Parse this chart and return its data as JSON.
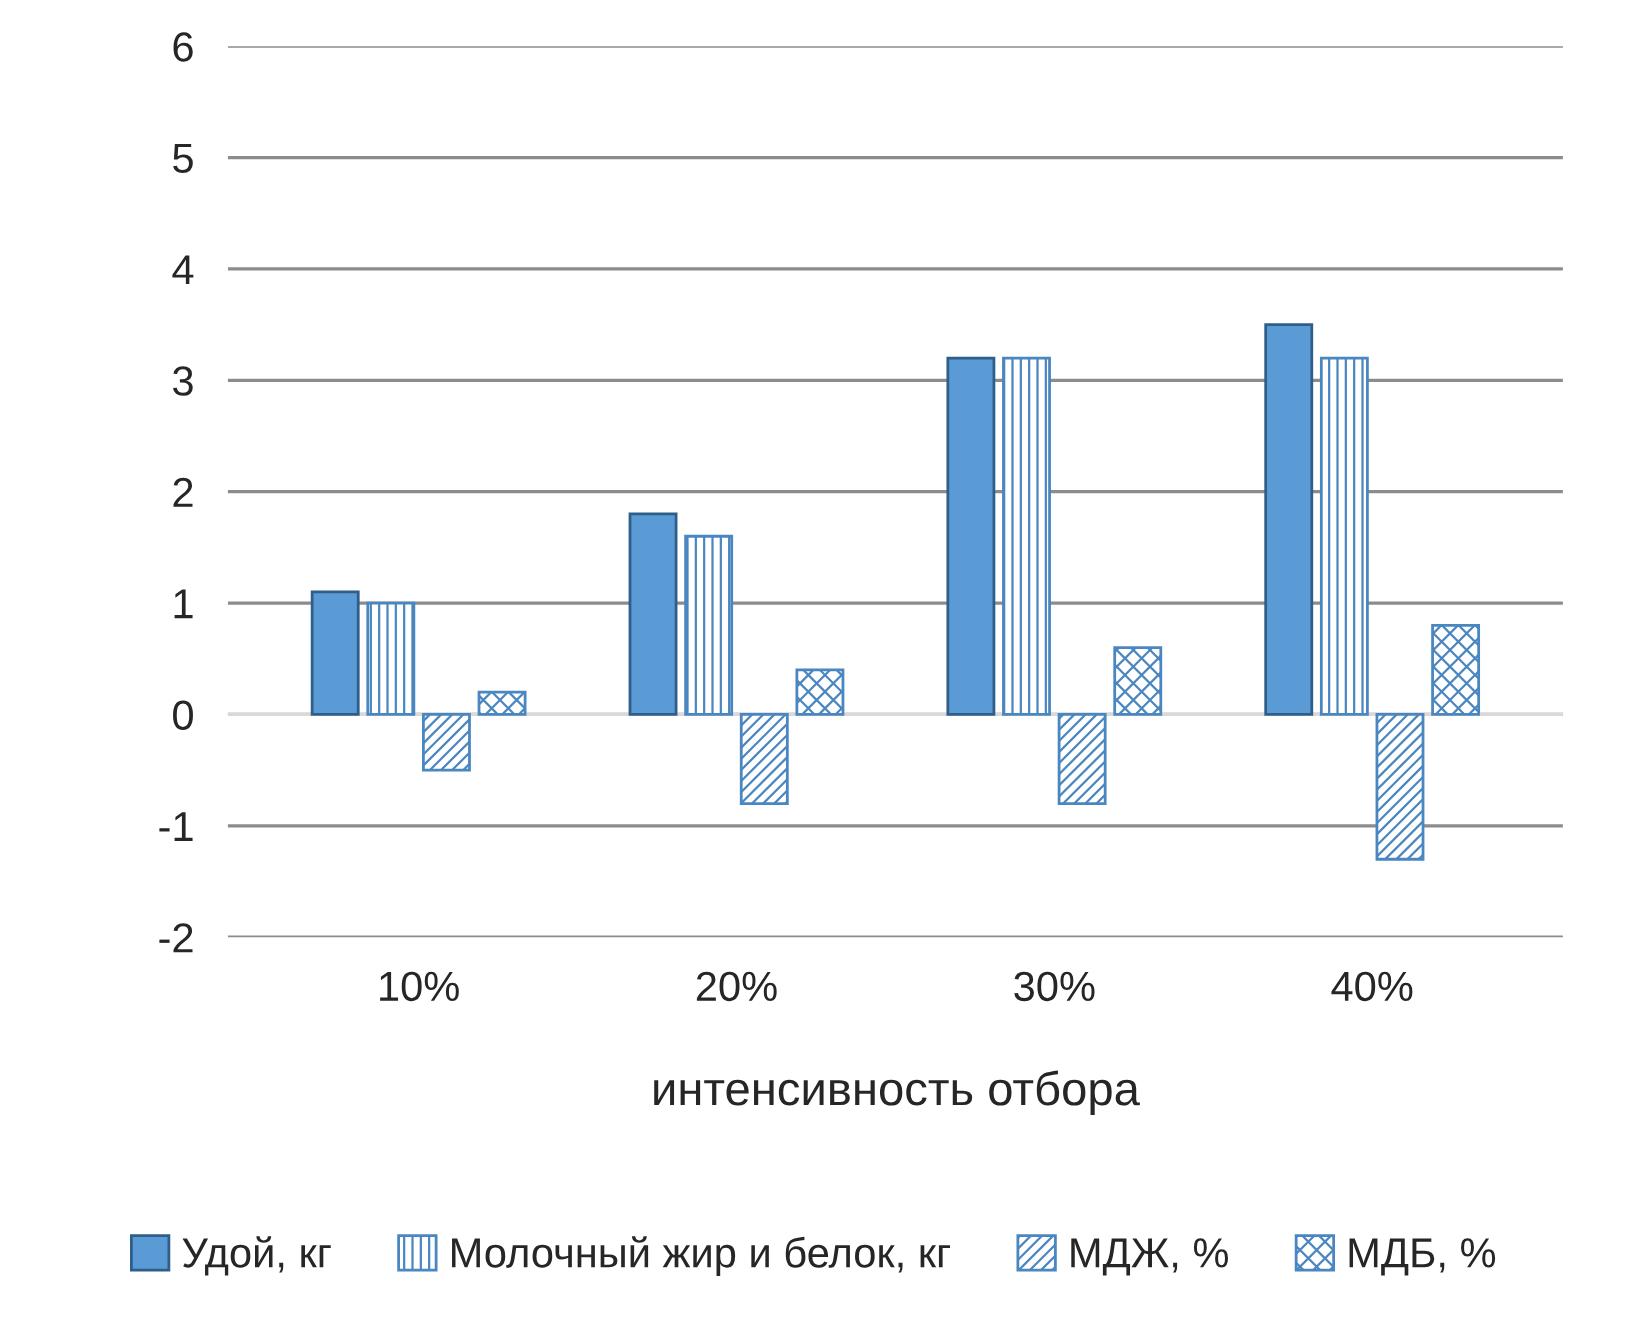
{
  "chart_data": {
    "type": "bar",
    "xlabel": "интенсивность отбора",
    "categories": [
      "10%",
      "20%",
      "30%",
      "40%"
    ],
    "series": [
      {
        "name": "Удой, кг",
        "color": "#5b9bd5",
        "values": [
          1.1,
          1.8,
          3.2,
          3.5
        ]
      },
      {
        "name": "Молочный жир и белок, кг",
        "color": "#4a86c0",
        "values": [
          1.0,
          1.6,
          3.2,
          3.2
        ]
      },
      {
        "name": "МДЖ, %",
        "color": "#4a86c0",
        "values": [
          -0.5,
          -0.8,
          -0.8,
          -1.3
        ]
      },
      {
        "name": "МДБ, %",
        "color": "#4a86c0",
        "values": [
          0.2,
          0.4,
          0.6,
          0.8
        ]
      }
    ],
    "ylim": [
      -2,
      6
    ],
    "yticks": [
      -2,
      -1,
      0,
      1,
      2,
      3,
      4,
      5,
      6
    ],
    "grid": "y",
    "legend": "bottom"
  }
}
